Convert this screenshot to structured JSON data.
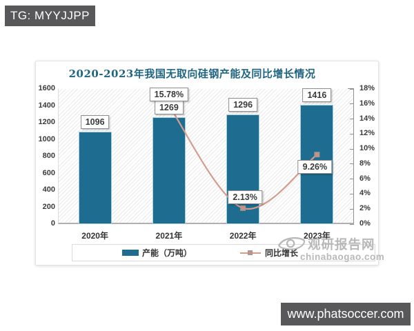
{
  "badges": {
    "tg": "TG: MYYJJPP",
    "site": "www.phatsoccer.com"
  },
  "watermark": {
    "brand": "观研报告网",
    "domain": "chinabaogao.com",
    "logo": "eye-swirl-icon"
  },
  "chart_data": {
    "type": "bar+line",
    "title": "2020-2023年我国无取向硅钢产能及同比增长情况",
    "categories": [
      "2020年",
      "2021年",
      "2022年",
      "2023年"
    ],
    "series": [
      {
        "name": "产能（万吨）",
        "type": "bar",
        "axis": "left",
        "values": [
          1096,
          1269,
          1296,
          1416
        ],
        "labels": [
          "1096",
          "1269",
          "1296",
          "1416"
        ]
      },
      {
        "name": "同比增长",
        "type": "line",
        "axis": "right",
        "values": [
          null,
          15.78,
          2.13,
          9.26
        ],
        "labels": [
          null,
          "15.78%",
          "2.13%",
          "9.26%"
        ]
      }
    ],
    "left_axis": {
      "min": 0,
      "max": 1600,
      "tick_labels": [
        "0",
        "200",
        "400",
        "600",
        "800",
        "1000",
        "1200",
        "1400",
        "1600"
      ]
    },
    "right_axis": {
      "min": 0,
      "max": 18,
      "tick_labels": [
        "0%",
        "2%",
        "4%",
        "6%",
        "8%",
        "10%",
        "12%",
        "14%",
        "16%",
        "18%"
      ]
    },
    "legend_position": "bottom",
    "grid": false,
    "plot_background": "diagonal-hatch",
    "colors": {
      "bar": "#1e6c90",
      "bar_border": "#a6d0df",
      "line": "#d49c8c",
      "marker_fill": "#c9917f",
      "marker_border": "#999999",
      "title": "#1f6480",
      "badge_bg": "#58585a",
      "watermark": "#b3b3b3"
    }
  }
}
